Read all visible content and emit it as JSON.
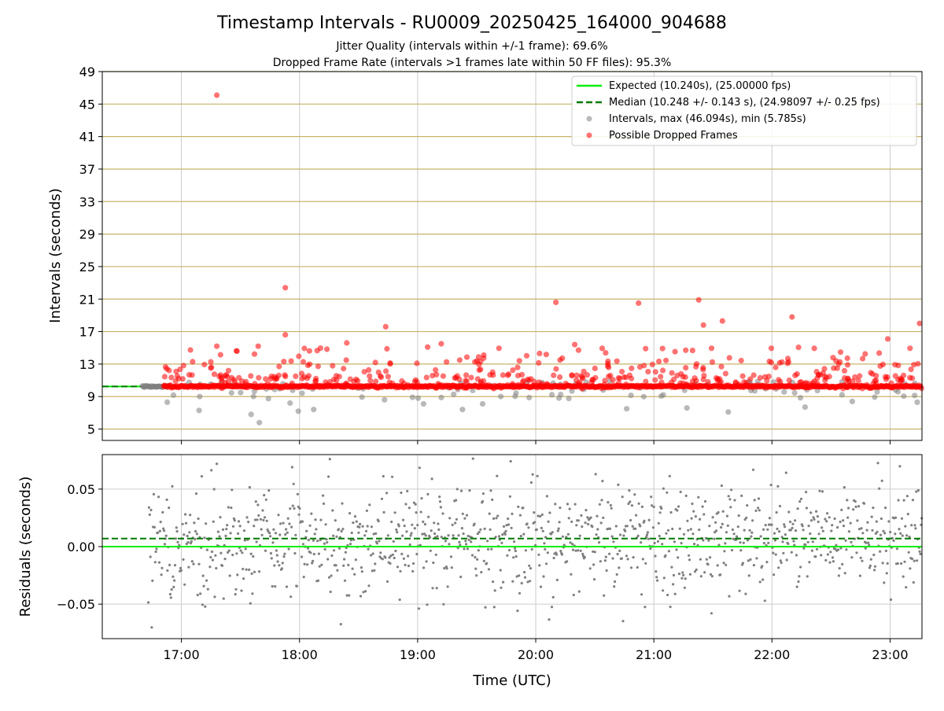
{
  "figure": {
    "title": "Timestamp Intervals - RU0009_20250425_164000_904688",
    "subtitle_1": "Jitter Quality (intervals within +/-1 frame): 69.6%",
    "subtitle_2": "Dropped Frame Rate (intervals >1 frames late within 50 FF files): 95.3%"
  },
  "colors": {
    "expected": "#00ee00",
    "median": "#007a00",
    "intervals": "#808080",
    "dropped": "#ff0000",
    "hgrid_top": "#c8b26a",
    "grid": "#cccccc"
  },
  "chart_data": [
    {
      "type": "scatter",
      "ylabel": "Intervals (seconds)",
      "x_range_hours": [
        16.33,
        23.27
      ],
      "ylim": [
        3.6,
        49
      ],
      "yticks": [
        5,
        9,
        13,
        17,
        21,
        25,
        29,
        33,
        37,
        41,
        45,
        49
      ],
      "grid": true,
      "legend_position": "top-right",
      "legend": [
        {
          "key": "expected",
          "label": "Expected (10.240s), (25.00000 fps)"
        },
        {
          "key": "median",
          "label": "Median (10.248 +/- 0.143 s), (24.98097 +/- 0.25 fps)"
        },
        {
          "key": "intervals",
          "label": "Intervals, max (46.094s), min (5.785s)"
        },
        {
          "key": "dropped",
          "label": "Possible Dropped Frames"
        }
      ],
      "expected_value": 10.24,
      "median_value": 10.248,
      "interval_start_hours": 16.67,
      "interval_end_hours": 23.27,
      "dropped_outliers": [
        {
          "x": 17.3,
          "y": 46.1
        },
        {
          "x": 17.88,
          "y": 22.4
        },
        {
          "x": 18.73,
          "y": 17.6
        },
        {
          "x": 20.17,
          "y": 20.6
        },
        {
          "x": 20.87,
          "y": 20.5
        },
        {
          "x": 21.38,
          "y": 20.9
        },
        {
          "x": 22.17,
          "y": 18.8
        },
        {
          "x": 21.58,
          "y": 18.3
        },
        {
          "x": 23.25,
          "y": 18.0
        },
        {
          "x": 21.42,
          "y": 17.8
        },
        {
          "x": 17.88,
          "y": 16.6
        },
        {
          "x": 22.98,
          "y": 16.1
        },
        {
          "x": 18.4,
          "y": 15.6
        },
        {
          "x": 19.2,
          "y": 15.5
        },
        {
          "x": 17.3,
          "y": 15.2
        },
        {
          "x": 17.65,
          "y": 15.2
        },
        {
          "x": 17.47,
          "y": 14.6
        },
        {
          "x": 20.33,
          "y": 15.4
        },
        {
          "x": 21.27,
          "y": 14.7
        },
        {
          "x": 20.93,
          "y": 14.9
        },
        {
          "x": 19.56,
          "y": 14.1
        }
      ],
      "interval_outliers": [
        {
          "x": 17.66,
          "y": 5.8
        },
        {
          "x": 17.59,
          "y": 6.8
        },
        {
          "x": 17.15,
          "y": 7.3
        },
        {
          "x": 17.99,
          "y": 7.2
        },
        {
          "x": 18.12,
          "y": 7.4
        },
        {
          "x": 19.38,
          "y": 7.4
        },
        {
          "x": 20.77,
          "y": 7.5
        },
        {
          "x": 21.28,
          "y": 7.6
        },
        {
          "x": 21.63,
          "y": 7.1
        },
        {
          "x": 22.28,
          "y": 7.7
        },
        {
          "x": 16.88,
          "y": 8.3
        },
        {
          "x": 17.92,
          "y": 8.2
        },
        {
          "x": 19.05,
          "y": 8.1
        },
        {
          "x": 19.55,
          "y": 8.1
        },
        {
          "x": 22.68,
          "y": 8.4
        },
        {
          "x": 23.23,
          "y": 8.3
        },
        {
          "x": 18.72,
          "y": 8.6
        },
        {
          "x": 21.08,
          "y": 9.2
        }
      ]
    },
    {
      "type": "scatter",
      "xlabel": "Time (UTC)",
      "ylabel": "Residuals (seconds)",
      "x_range_hours": [
        16.33,
        23.27
      ],
      "ylim": [
        -0.08,
        0.08
      ],
      "yticks": [
        -0.05,
        0.0,
        0.05
      ],
      "ytick_labels": [
        "−0.05",
        "0.00",
        "0.05"
      ],
      "xticks_hours": [
        17,
        18,
        19,
        20,
        21,
        22,
        23
      ],
      "xtick_labels": [
        "17:00",
        "18:00",
        "19:00",
        "20:00",
        "21:00",
        "22:00",
        "23:00"
      ],
      "grid": true,
      "expected_residual": 0.0,
      "median_residual": 0.007,
      "residual_spread": 0.025
    }
  ]
}
